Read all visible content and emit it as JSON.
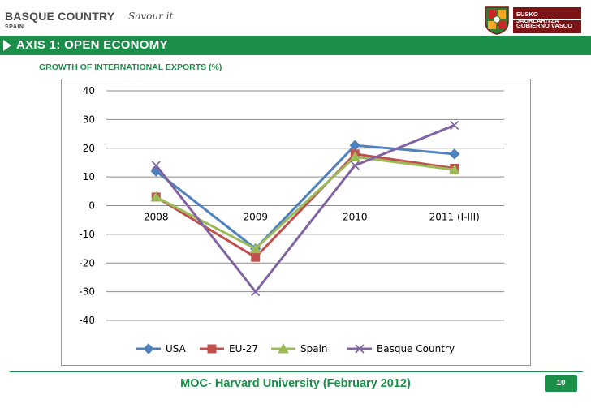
{
  "header": {
    "logo_main": "BASQUE COUNTRY",
    "logo_script": "Savour it",
    "logo_sub": "SPAIN",
    "gov_line1": "EUSKO JAURLARITZA",
    "gov_line2": "GOBIERNO VASCO"
  },
  "section": {
    "title": "AXIS 1:  OPEN ECONOMY",
    "subtitle": "GROWTH OF INTERNATIONAL EXPORTS (%)"
  },
  "footer": {
    "text": "MOC- Harvard University (February 2012)",
    "page_number": "10"
  },
  "colors": {
    "brand_green": "#1b8f4a",
    "gov_red": "#7a1416"
  },
  "chart_data": {
    "type": "line",
    "title": "GROWTH OF INTERNATIONAL EXPORTS (%)",
    "xlabel": "",
    "ylabel": "",
    "categories": [
      "2008",
      "2009",
      "2010",
      "2011 (I-III)"
    ],
    "ylim": [
      -40,
      40
    ],
    "yticks": [
      "40",
      "30",
      "20",
      "10",
      "0",
      "-10",
      "-20",
      "-30",
      "-40"
    ],
    "grid": true,
    "legend": "bottom",
    "series": [
      {
        "name": "USA",
        "values": [
          12,
          -15,
          21,
          18
        ],
        "color": "#4f81bd",
        "marker": "diamond"
      },
      {
        "name": "EU-27",
        "values": [
          3,
          -18,
          18,
          13
        ],
        "color": "#c0504d",
        "marker": "square"
      },
      {
        "name": "Spain",
        "values": [
          3,
          -15,
          17,
          12.5
        ],
        "color": "#9bbb59",
        "marker": "triangle"
      },
      {
        "name": "Basque Country",
        "values": [
          14,
          -30,
          14,
          28
        ],
        "color": "#8064a2",
        "marker": "x"
      }
    ]
  }
}
